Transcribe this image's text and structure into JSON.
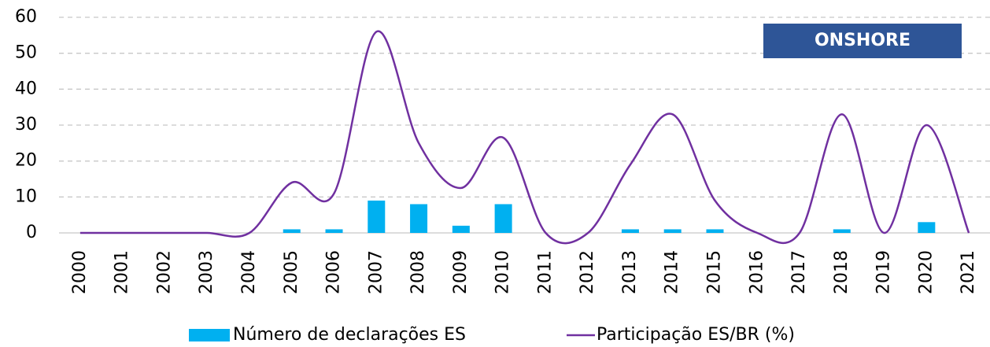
{
  "chart_data": {
    "type": "bar-line",
    "annotation": "ONSHORE",
    "categories": [
      "2000",
      "2001",
      "2002",
      "2003",
      "2004",
      "2005",
      "2006",
      "2007",
      "2008",
      "2009",
      "2010",
      "2011",
      "2012",
      "2013",
      "2014",
      "2015",
      "2016",
      "2017",
      "2018",
      "2019",
      "2020",
      "2021"
    ],
    "series": [
      {
        "name": "Número de declarações ES",
        "type": "bar",
        "color": "#00b0f0",
        "values": [
          0,
          0,
          0,
          0,
          0,
          1,
          1,
          9,
          8,
          2,
          8,
          0,
          0,
          1,
          1,
          1,
          0,
          0,
          1,
          0,
          3,
          0
        ]
      },
      {
        "name": "Participação ES/BR (%)",
        "type": "line",
        "color": "#7030a0",
        "values": [
          0,
          0,
          0,
          0,
          0,
          14,
          11,
          56,
          25,
          12.5,
          26.5,
          0,
          0,
          19,
          33,
          9,
          0,
          0,
          33,
          0,
          30,
          0
        ]
      }
    ],
    "ylim": [
      0,
      60
    ],
    "yticks": [
      0,
      10,
      20,
      30,
      40,
      50,
      60
    ],
    "grid": true,
    "legend": "bottom"
  }
}
